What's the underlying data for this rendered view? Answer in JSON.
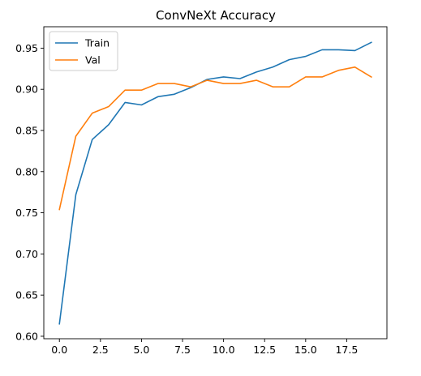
{
  "chart_data": {
    "type": "line",
    "title": "ConvNeXt Accuracy",
    "xlabel": "",
    "ylabel": "",
    "xlim": [
      -0.95,
      19.95
    ],
    "ylim": [
      0.597,
      0.976
    ],
    "xticks": [
      0.0,
      2.5,
      5.0,
      7.5,
      10.0,
      12.5,
      15.0,
      17.5
    ],
    "xtick_labels": [
      "0.0",
      "2.5",
      "5.0",
      "7.5",
      "10.0",
      "12.5",
      "15.0",
      "17.5"
    ],
    "yticks": [
      0.6,
      0.65,
      0.7,
      0.75,
      0.8,
      0.85,
      0.9,
      0.95
    ],
    "ytick_labels": [
      "0.60",
      "0.65",
      "0.70",
      "0.75",
      "0.80",
      "0.85",
      "0.90",
      "0.95"
    ],
    "grid": false,
    "legend_position": "top-left",
    "x": [
      0,
      1,
      2,
      3,
      4,
      5,
      6,
      7,
      8,
      9,
      10,
      11,
      12,
      13,
      14,
      15,
      16,
      17,
      18,
      19
    ],
    "series": [
      {
        "name": "Train",
        "color": "#1f77b4",
        "values": [
          0.615,
          0.772,
          0.839,
          0.857,
          0.884,
          0.881,
          0.891,
          0.894,
          0.902,
          0.912,
          0.915,
          0.913,
          0.921,
          0.927,
          0.936,
          0.94,
          0.948,
          0.948,
          0.947,
          0.957
        ]
      },
      {
        "name": "Val",
        "color": "#ff7f0e",
        "values": [
          0.754,
          0.843,
          0.871,
          0.879,
          0.899,
          0.899,
          0.907,
          0.907,
          0.903,
          0.911,
          0.907,
          0.907,
          0.911,
          0.903,
          0.903,
          0.915,
          0.915,
          0.923,
          0.927,
          0.915
        ]
      }
    ]
  }
}
